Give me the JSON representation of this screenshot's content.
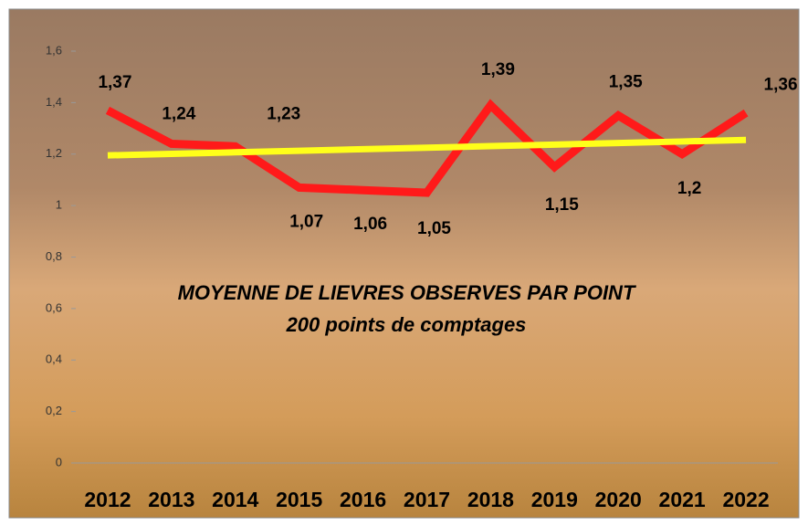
{
  "chart_data": {
    "type": "line",
    "title": "MOYENNE DE LIEVRES OBSERVES PAR POINT",
    "subtitle": "200 points de comptages",
    "categories": [
      "2012",
      "2013",
      "2014",
      "2015",
      "2016",
      "2017",
      "2018",
      "2019",
      "2020",
      "2021",
      "2022"
    ],
    "series": [
      {
        "color": "#ff1a1a",
        "values": [
          1.37,
          1.24,
          1.23,
          1.07,
          1.06,
          1.05,
          1.39,
          1.15,
          1.35,
          1.2,
          1.36
        ],
        "value_labels": [
          "1,37",
          "1,24",
          "1,23",
          "1,07",
          "1,06",
          "1,05",
          "1,39",
          "1,15",
          "1,35",
          "1,2",
          "1,36"
        ]
      },
      {
        "color": "#ffff1a",
        "values": [
          1.195,
          1.201,
          1.207,
          1.213,
          1.219,
          1.225,
          1.231,
          1.237,
          1.243,
          1.249,
          1.255
        ]
      }
    ],
    "ylim": [
      0,
      1.6
    ],
    "yticks": [
      0,
      {
        "value": 0.2,
        "label": "0,2"
      },
      {
        "value": 0.4,
        "label": "0,4"
      },
      {
        "value": 0.6,
        "label": "0,6"
      },
      {
        "value": 0.8,
        "label": "0,8"
      },
      1,
      {
        "value": 1.2,
        "label": "1,2"
      },
      {
        "value": 1.4,
        "label": "1,4"
      },
      {
        "value": 1.6,
        "label": "1,6"
      }
    ],
    "grid": false
  }
}
